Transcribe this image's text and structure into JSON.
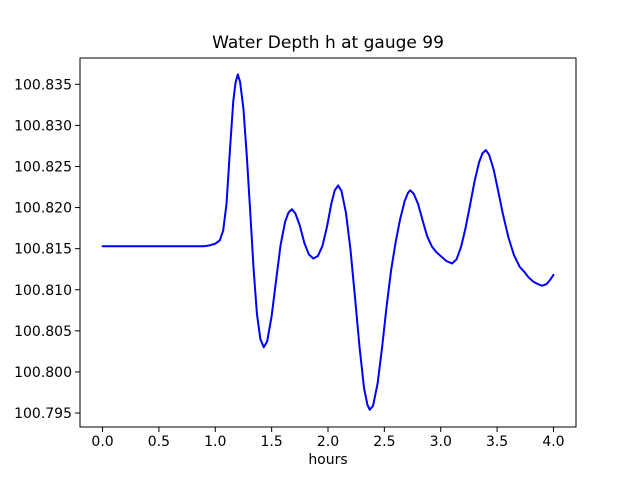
{
  "figure": {
    "background": "#ffffff"
  },
  "chart_data": {
    "type": "line",
    "title": "Water Depth h at gauge 99",
    "xlabel": "hours",
    "ylabel": "",
    "line_color": "#0000ff",
    "axis_color": "#000000",
    "grid": false,
    "legend": null,
    "xlim": [
      -0.2,
      4.2
    ],
    "ylim": [
      100.7933,
      100.8382
    ],
    "xticks": {
      "values": [
        0.0,
        0.5,
        1.0,
        1.5,
        2.0,
        2.5,
        3.0,
        3.5,
        4.0
      ],
      "labels": [
        "0.0",
        "0.5",
        "1.0",
        "1.5",
        "2.0",
        "2.5",
        "3.0",
        "3.5",
        "4.0"
      ]
    },
    "yticks": {
      "values": [
        100.795,
        100.8,
        100.805,
        100.81,
        100.815,
        100.82,
        100.825,
        100.83,
        100.835
      ],
      "labels": [
        "100.795",
        "100.800",
        "100.805",
        "100.810",
        "100.815",
        "100.820",
        "100.825",
        "100.830",
        "100.835"
      ]
    },
    "x": [
      0.0,
      0.2,
      0.4,
      0.6,
      0.8,
      0.9,
      0.95,
      1.0,
      1.04,
      1.07,
      1.1,
      1.13,
      1.16,
      1.18,
      1.2,
      1.22,
      1.25,
      1.28,
      1.31,
      1.34,
      1.37,
      1.4,
      1.43,
      1.46,
      1.5,
      1.54,
      1.58,
      1.62,
      1.65,
      1.68,
      1.71,
      1.75,
      1.79,
      1.83,
      1.87,
      1.91,
      1.95,
      1.99,
      2.03,
      2.06,
      2.09,
      2.12,
      2.16,
      2.2,
      2.24,
      2.28,
      2.32,
      2.35,
      2.37,
      2.4,
      2.44,
      2.48,
      2.52,
      2.56,
      2.6,
      2.64,
      2.68,
      2.71,
      2.73,
      2.76,
      2.8,
      2.84,
      2.88,
      2.92,
      2.96,
      3.0,
      3.05,
      3.1,
      3.14,
      3.18,
      3.22,
      3.26,
      3.3,
      3.34,
      3.37,
      3.4,
      3.43,
      3.47,
      3.51,
      3.55,
      3.6,
      3.65,
      3.7,
      3.74,
      3.78,
      3.82,
      3.86,
      3.9,
      3.94,
      3.97,
      4.0
    ],
    "y": [
      100.8153,
      100.8153,
      100.8153,
      100.8153,
      100.8153,
      100.8153,
      100.8154,
      100.8156,
      100.816,
      100.8172,
      100.8205,
      100.827,
      100.833,
      100.8352,
      100.8362,
      100.8353,
      100.832,
      100.8262,
      100.8195,
      100.8125,
      100.807,
      100.804,
      100.803,
      100.8037,
      100.8068,
      100.8112,
      100.8155,
      100.8183,
      100.8194,
      100.8198,
      100.8193,
      100.8178,
      100.8157,
      100.8143,
      100.8138,
      100.8141,
      100.8153,
      100.8176,
      100.8205,
      100.8221,
      100.8227,
      100.822,
      100.8193,
      100.8148,
      100.809,
      100.803,
      100.798,
      100.796,
      100.7954,
      100.7959,
      100.7986,
      100.803,
      100.808,
      100.8124,
      100.8158,
      100.8186,
      100.8208,
      100.8218,
      100.8221,
      100.8217,
      100.8204,
      100.8184,
      100.8165,
      100.8153,
      100.8146,
      100.8141,
      100.8135,
      100.8132,
      100.8137,
      100.8152,
      100.8175,
      100.8203,
      100.8232,
      100.8255,
      100.8266,
      100.827,
      100.8264,
      100.8246,
      100.822,
      100.8193,
      100.8164,
      100.8142,
      100.8128,
      100.8122,
      100.8115,
      100.811,
      100.8107,
      100.8105,
      100.8107,
      100.8112,
      100.8118
    ]
  }
}
